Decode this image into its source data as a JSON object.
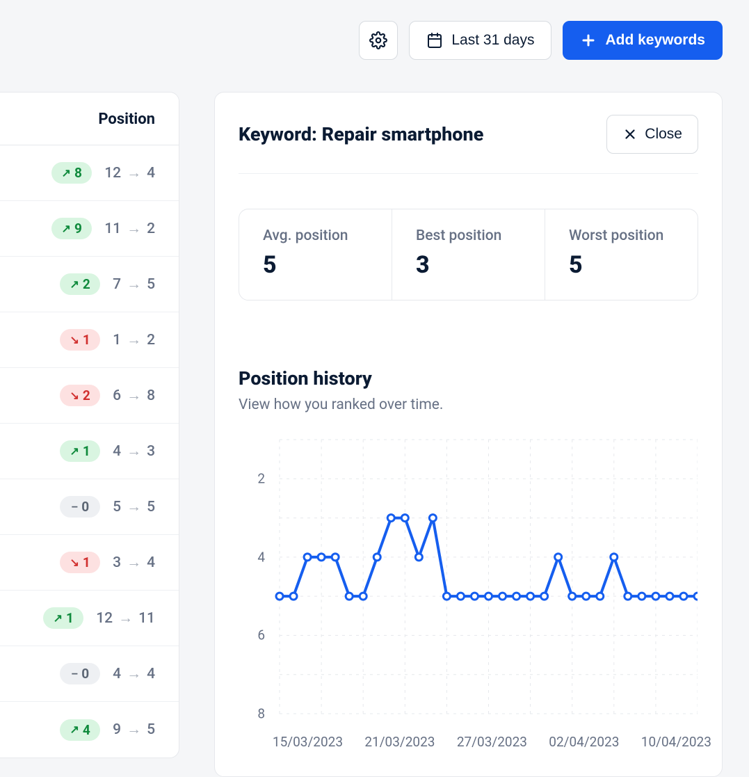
{
  "toolbar": {
    "date_range_label": "Last 31 days",
    "add_keywords_label": "Add keywords"
  },
  "sidebar": {
    "header": "Position",
    "rows": [
      {
        "dir": "up",
        "delta": 8,
        "from": 12,
        "to": 4
      },
      {
        "dir": "up",
        "delta": 9,
        "from": 11,
        "to": 2
      },
      {
        "dir": "up",
        "delta": 2,
        "from": 7,
        "to": 5
      },
      {
        "dir": "down",
        "delta": 1,
        "from": 1,
        "to": 2
      },
      {
        "dir": "down",
        "delta": 2,
        "from": 6,
        "to": 8
      },
      {
        "dir": "up",
        "delta": 1,
        "from": 4,
        "to": 3
      },
      {
        "dir": "flat",
        "delta": 0,
        "from": 5,
        "to": 5
      },
      {
        "dir": "down",
        "delta": 1,
        "from": 3,
        "to": 4
      },
      {
        "dir": "up",
        "delta": 1,
        "from": 12,
        "to": 11
      },
      {
        "dir": "flat",
        "delta": 0,
        "from": 4,
        "to": 4
      },
      {
        "dir": "up",
        "delta": 4,
        "from": 9,
        "to": 5
      }
    ]
  },
  "panel": {
    "title": "Keyword: Repair smartphone",
    "close_label": "Close",
    "stats": {
      "avg_label": "Avg. position",
      "avg_value": "5",
      "best_label": "Best position",
      "best_value": "3",
      "worst_label": "Worst position",
      "worst_value": "5"
    },
    "history": {
      "title": "Position history",
      "subtitle": "View how you ranked over time.",
      "chart": {
        "type": "line",
        "y_axis": {
          "min": 1,
          "max": 8,
          "ticks": [
            2,
            4,
            6,
            8
          ],
          "grid_color": "#e6e8ec",
          "dash": "4 6"
        },
        "x_labels": [
          "15/03/2023",
          "21/03/2023",
          "27/03/2023",
          "02/04/2023",
          "10/04/2023"
        ],
        "series_color": "#155eef",
        "line_width": 4,
        "marker": {
          "radius": 5,
          "fill": "#ffffff",
          "stroke": "#155eef",
          "stroke_width": 3
        },
        "background_color": "#ffffff",
        "values": [
          5,
          5,
          4,
          4,
          4,
          5,
          5,
          4,
          3,
          3,
          4,
          3,
          5,
          5,
          5,
          5,
          5,
          5,
          5,
          5,
          4,
          5,
          5,
          5,
          4,
          5,
          5,
          5,
          5,
          5,
          5
        ]
      }
    }
  },
  "colors": {
    "brand": "#155eef",
    "text_primary": "#0b1b33",
    "text_muted": "#667084",
    "border": "#e6e8ec",
    "page_bg": "#f5f6f8",
    "badge_up_bg": "#d9f5e1",
    "badge_up_text": "#0f8a3c",
    "badge_down_bg": "#fde1e1",
    "badge_down_text": "#d1302f",
    "badge_flat_bg": "#eef0f3",
    "badge_flat_text": "#5b6573"
  }
}
